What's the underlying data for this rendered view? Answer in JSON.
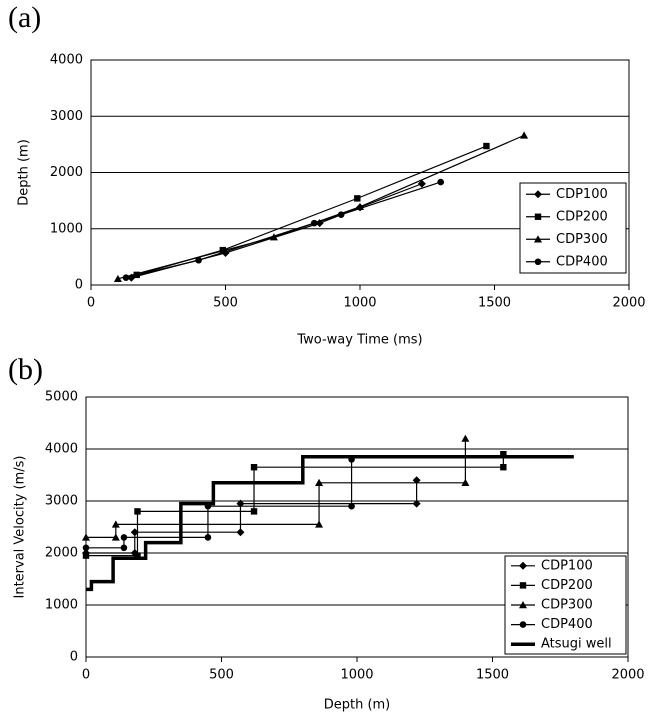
{
  "chart_data": [
    {
      "type": "line",
      "panel_label": "(a)",
      "xlabel": "Two-way Time (ms)",
      "ylabel": "Depth (m)",
      "xlim": [
        0,
        2000
      ],
      "xticks": [
        0,
        500,
        1000,
        1500,
        2000
      ],
      "ylim": [
        0,
        4000
      ],
      "yticks": [
        0,
        1000,
        2000,
        3000,
        4000
      ],
      "grid": true,
      "legend": "right",
      "series": [
        {
          "name": "CDP100",
          "color": "#000000",
          "marker": "diamond",
          "x": [
            150,
            500,
            850,
            1000,
            1230
          ],
          "values": [
            130,
            570,
            1100,
            1380,
            1800
          ]
        },
        {
          "name": "CDP200",
          "color": "#000000",
          "marker": "square",
          "x": [
            170,
            490,
            990,
            1470
          ],
          "values": [
            180,
            620,
            1540,
            2470
          ]
        },
        {
          "name": "CDP300",
          "color": "#000000",
          "marker": "triangle",
          "x": [
            100,
            680,
            1000,
            1610
          ],
          "values": [
            110,
            850,
            1390,
            2660
          ]
        },
        {
          "name": "CDP400",
          "color": "#000000",
          "marker": "circle",
          "x": [
            130,
            400,
            830,
            930,
            1300
          ],
          "values": [
            130,
            440,
            1100,
            1250,
            1830
          ]
        }
      ]
    },
    {
      "type": "line",
      "panel_label": "(b)",
      "xlabel": "Depth (m)",
      "ylabel": "Interval Velocity (m/s)",
      "xlim": [
        0,
        2000
      ],
      "xticks": [
        0,
        500,
        1000,
        1500,
        2000
      ],
      "ylim": [
        0,
        5000
      ],
      "yticks": [
        0,
        1000,
        2000,
        3000,
        4000,
        5000
      ],
      "grid": true,
      "legend": "lower right",
      "series": [
        {
          "name": "CDP100",
          "color": "#000000",
          "marker": "diamond",
          "x": [
            0,
            180,
            180,
            570,
            570,
            1220,
            1220
          ],
          "values": [
            2000,
            2000,
            2400,
            2400,
            2950,
            2950,
            3400
          ]
        },
        {
          "name": "CDP200",
          "color": "#000000",
          "marker": "square",
          "x": [
            0,
            190,
            190,
            620,
            620,
            1540,
            1540
          ],
          "values": [
            1950,
            1950,
            2800,
            2800,
            3650,
            3650,
            3900
          ]
        },
        {
          "name": "CDP300",
          "color": "#000000",
          "marker": "triangle",
          "x": [
            0,
            110,
            110,
            860,
            860,
            1400,
            1400
          ],
          "values": [
            2300,
            2300,
            2550,
            2550,
            3350,
            3350,
            4200
          ]
        },
        {
          "name": "CDP400",
          "color": "#000000",
          "marker": "circle",
          "x": [
            0,
            140,
            140,
            450,
            450,
            980,
            980
          ],
          "values": [
            2100,
            2100,
            2300,
            2300,
            2900,
            2900,
            3800
          ]
        },
        {
          "name": "Atsugi well",
          "color": "#000000",
          "linewidth": 3.5,
          "x": [
            0,
            20,
            20,
            100,
            100,
            220,
            220,
            350,
            350,
            470,
            470,
            800,
            800,
            1800
          ],
          "values": [
            1300,
            1300,
            1450,
            1450,
            1900,
            1900,
            2200,
            2200,
            2950,
            2950,
            3350,
            3350,
            3850,
            3850
          ]
        }
      ]
    }
  ]
}
